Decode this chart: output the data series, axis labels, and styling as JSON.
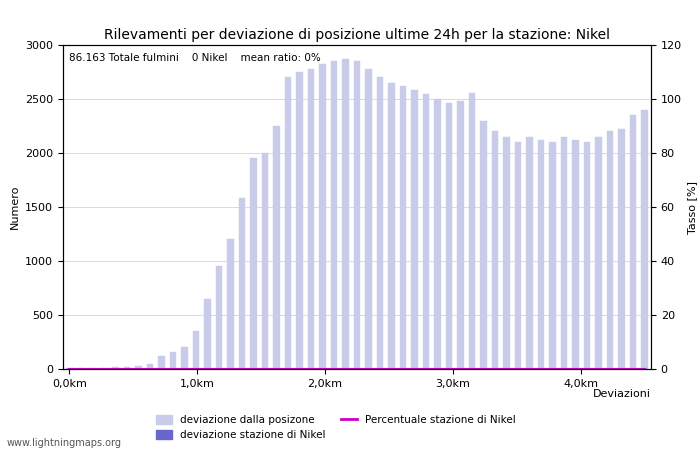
{
  "title": "Rilevamenti per deviazione di posizione ultime 24h per la stazione: Nikel",
  "subtitle": "86.163 Totale fulmini    0 Nikel    mean ratio: 0%",
  "ylabel_left": "Numero",
  "ylabel_right": "Tasso [%]",
  "xlabel": "Deviazioni",
  "ylim_left": [
    0,
    3000
  ],
  "ylim_right": [
    0,
    120
  ],
  "yticks_left": [
    0,
    500,
    1000,
    1500,
    2000,
    2500,
    3000
  ],
  "yticks_right": [
    0,
    20,
    40,
    60,
    80,
    100,
    120
  ],
  "xtick_labels": [
    "0,0km",
    "1,0km",
    "2,0km",
    "3,0km",
    "4,0km"
  ],
  "bar_color_all": "#c8cce8",
  "bar_color_nikel": "#6666cc",
  "line_color": "#cc00cc",
  "watermark": "www.lightningmaps.org",
  "legend_entries": [
    "deviazione dalla posizone",
    "deviazione stazione di Nikel",
    "Percentuale stazione di Nikel"
  ],
  "bar_values": [
    5,
    5,
    8,
    10,
    15,
    20,
    30,
    45,
    120,
    160,
    200,
    350,
    650,
    950,
    1200,
    1580,
    1950,
    2000,
    2250,
    2700,
    2750,
    2780,
    2820,
    2850,
    2870,
    2850,
    2780,
    2700,
    2650,
    2620,
    2580,
    2550,
    2500,
    2460,
    2480,
    2560,
    2300,
    2200,
    2150,
    2100,
    2150,
    2120,
    2100,
    2150,
    2120,
    2100,
    2150,
    2200,
    2220,
    2350,
    2400
  ],
  "nikel_values": [
    0,
    0,
    0,
    0,
    0,
    0,
    0,
    0,
    0,
    0,
    0,
    0,
    0,
    0,
    0,
    0,
    0,
    0,
    0,
    0,
    0,
    0,
    0,
    0,
    0,
    0,
    0,
    0,
    0,
    0,
    0,
    0,
    0,
    0,
    0,
    0,
    0,
    0,
    0,
    0,
    0,
    0,
    0,
    0,
    0,
    0,
    0,
    0,
    0,
    0,
    0
  ],
  "ratio_values": [
    0,
    0,
    0,
    0,
    0,
    0,
    0,
    0,
    0,
    0,
    0,
    0,
    0,
    0,
    0,
    0,
    0,
    0,
    0,
    0,
    0,
    0,
    0,
    0,
    0,
    0,
    0,
    0,
    0,
    0,
    0,
    0,
    0,
    0,
    0,
    0,
    0,
    0,
    0,
    0,
    0,
    0,
    0,
    0,
    0,
    0,
    0,
    0,
    0,
    0,
    0
  ],
  "n_bars": 51,
  "total_km": 4.5,
  "x_label_km": [
    0,
    1,
    2,
    3,
    4
  ],
  "background_color": "#ffffff",
  "grid_color": "#aaaaaa",
  "title_fontsize": 10,
  "label_fontsize": 8,
  "tick_fontsize": 8,
  "subtitle_fontsize": 7.5
}
